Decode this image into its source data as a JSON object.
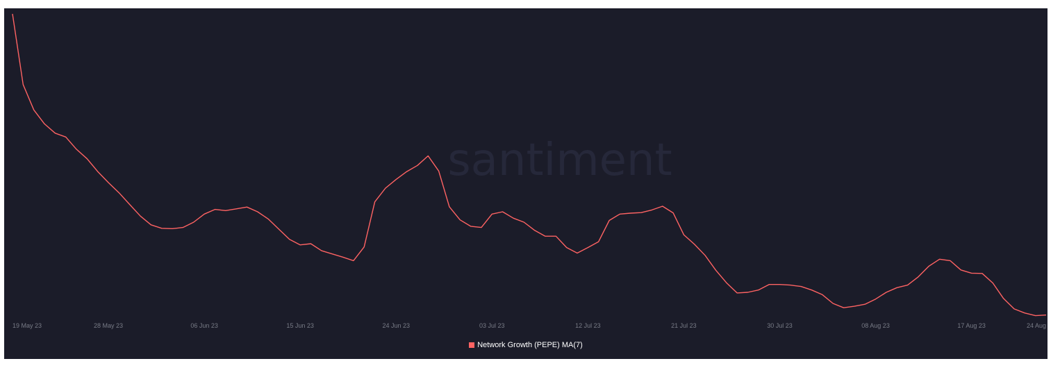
{
  "watermark": "santiment",
  "colors": {
    "background": "#1b1c29",
    "line": "#ff6363",
    "axis_text": "#787b86",
    "legend_text": "#ffffff",
    "watermark": "#26283a"
  },
  "chart_data": {
    "type": "line",
    "title": "",
    "xlabel": "",
    "ylabel": "",
    "x_range": [
      "2023-05-19",
      "2023-08-24"
    ],
    "y_axis_visible": false,
    "grid": false,
    "legend_placement": "bottom-center",
    "x_tick_labels": [
      "19 May 23",
      "28 May 23",
      "06 Jun 23",
      "15 Jun 23",
      "24 Jun 23",
      "03 Jul 23",
      "12 Jul 23",
      "21 Jul 23",
      "30 Jul 23",
      "08 Aug 23",
      "17 Aug 23",
      "24 Aug"
    ],
    "x_tick_dates": [
      "2023-05-19",
      "2023-05-28",
      "2023-06-06",
      "2023-06-15",
      "2023-06-24",
      "2023-07-03",
      "2023-07-12",
      "2023-07-21",
      "2023-07-30",
      "2023-08-08",
      "2023-08-17",
      "2023-08-24"
    ],
    "series": [
      {
        "name": "Network Growth (PEPE) MA(7)",
        "x": [
          "2023-05-19",
          "2023-05-20",
          "2023-05-21",
          "2023-05-22",
          "2023-05-23",
          "2023-05-24",
          "2023-05-25",
          "2023-05-26",
          "2023-05-27",
          "2023-05-28",
          "2023-05-29",
          "2023-05-30",
          "2023-05-31",
          "2023-06-01",
          "2023-06-02",
          "2023-06-03",
          "2023-06-04",
          "2023-06-05",
          "2023-06-06",
          "2023-06-07",
          "2023-06-08",
          "2023-06-09",
          "2023-06-10",
          "2023-06-11",
          "2023-06-12",
          "2023-06-13",
          "2023-06-14",
          "2023-06-15",
          "2023-06-16",
          "2023-06-17",
          "2023-06-18",
          "2023-06-19",
          "2023-06-20",
          "2023-06-21",
          "2023-06-22",
          "2023-06-23",
          "2023-06-24",
          "2023-06-25",
          "2023-06-26",
          "2023-06-27",
          "2023-06-28",
          "2023-06-29",
          "2023-06-30",
          "2023-07-01",
          "2023-07-02",
          "2023-07-03",
          "2023-07-04",
          "2023-07-05",
          "2023-07-06",
          "2023-07-07",
          "2023-07-08",
          "2023-07-09",
          "2023-07-10",
          "2023-07-11",
          "2023-07-12",
          "2023-07-13",
          "2023-07-14",
          "2023-07-15",
          "2023-07-16",
          "2023-07-17",
          "2023-07-18",
          "2023-07-19",
          "2023-07-20",
          "2023-07-21",
          "2023-07-22",
          "2023-07-23",
          "2023-07-24",
          "2023-07-25",
          "2023-07-26",
          "2023-07-27",
          "2023-07-28",
          "2023-07-29",
          "2023-07-30",
          "2023-07-31",
          "2023-08-01",
          "2023-08-02",
          "2023-08-03",
          "2023-08-04",
          "2023-08-05",
          "2023-08-06",
          "2023-08-07",
          "2023-08-08",
          "2023-08-09",
          "2023-08-10",
          "2023-08-11",
          "2023-08-12",
          "2023-08-13",
          "2023-08-14",
          "2023-08-15",
          "2023-08-16",
          "2023-08-17",
          "2023-08-18",
          "2023-08-19",
          "2023-08-20",
          "2023-08-21",
          "2023-08-22",
          "2023-08-23",
          "2023-08-24"
        ],
        "values": [
          1.0,
          0.757,
          0.67,
          0.622,
          0.59,
          0.577,
          0.535,
          0.502,
          0.458,
          0.42,
          0.385,
          0.345,
          0.305,
          0.275,
          0.263,
          0.262,
          0.266,
          0.284,
          0.312,
          0.328,
          0.324,
          0.33,
          0.336,
          0.32,
          0.295,
          0.26,
          0.225,
          0.206,
          0.21,
          0.186,
          0.175,
          0.164,
          0.152,
          0.199,
          0.354,
          0.401,
          0.431,
          0.458,
          0.479,
          0.512,
          0.46,
          0.337,
          0.292,
          0.27,
          0.266,
          0.312,
          0.32,
          0.298,
          0.284,
          0.256,
          0.236,
          0.236,
          0.197,
          0.178,
          0.197,
          0.217,
          0.29,
          0.312,
          0.315,
          0.317,
          0.326,
          0.339,
          0.316,
          0.241,
          0.208,
          0.17,
          0.119,
          0.076,
          0.041,
          0.043,
          0.051,
          0.07,
          0.07,
          0.068,
          0.063,
          0.051,
          0.035,
          0.005,
          -0.01,
          -0.005,
          0.002,
          0.02,
          0.043,
          0.059,
          0.068,
          0.096,
          0.133,
          0.157,
          0.152,
          0.12,
          0.109,
          0.108,
          0.075,
          0.022,
          -0.014,
          -0.028,
          -0.037,
          -0.035
        ]
      }
    ]
  }
}
